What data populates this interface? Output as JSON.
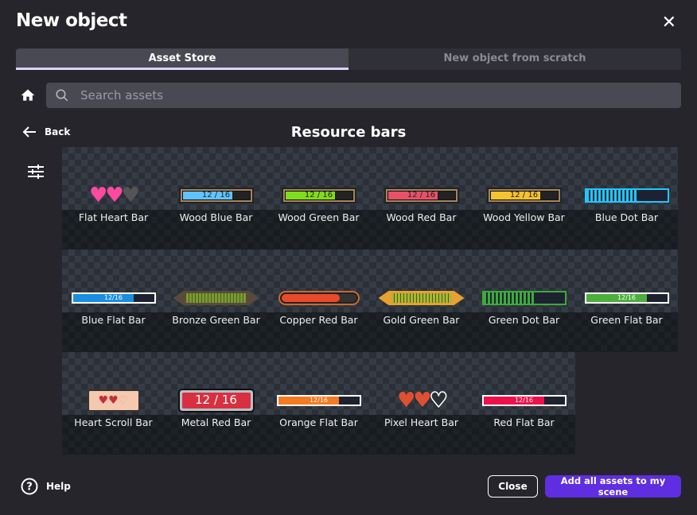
{
  "dialog": {
    "title": "New object"
  },
  "tabs": [
    {
      "label": "Asset Store",
      "active": true
    },
    {
      "label": "New object from scratch",
      "active": false
    }
  ],
  "search": {
    "placeholder": "Search assets",
    "value": ""
  },
  "nav": {
    "back_label": "Back",
    "heading": "Resource bars"
  },
  "assets": [
    {
      "name": "Flat Heart Bar",
      "kind": "hearts",
      "colors": [
        "#ff4aa0",
        "#ff4aa0",
        "#555555"
      ]
    },
    {
      "name": "Wood Blue Bar",
      "kind": "wood",
      "color": "#5ec4ff",
      "text": "12 / 16"
    },
    {
      "name": "Wood Green Bar",
      "kind": "wood",
      "color": "#7fdc1e",
      "text": "12 / 16"
    },
    {
      "name": "Wood Red Bar",
      "kind": "wood",
      "color": "#e8506a",
      "text": "12 / 16"
    },
    {
      "name": "Wood Yellow Bar",
      "kind": "wood",
      "color": "#f5c230",
      "text": "12 / 16"
    },
    {
      "name": "Blue Dot Bar",
      "kind": "dot",
      "color": "#1ec8ff"
    },
    {
      "name": "Blue Flat Bar",
      "kind": "flat",
      "color": "#1a8ee0",
      "text": "12/16"
    },
    {
      "name": "Bronze Green Bar",
      "kind": "ornate",
      "color": "#7a9a30",
      "frame": "#5a4a3a"
    },
    {
      "name": "Copper Red Bar",
      "kind": "capsule",
      "color": "#e84a2a"
    },
    {
      "name": "Gold Green Bar",
      "kind": "ornate",
      "color": "#a8b830",
      "frame": "#e8a030"
    },
    {
      "name": "Green Dot Bar",
      "kind": "dot",
      "color": "#3caa3c"
    },
    {
      "name": "Green Flat Bar",
      "kind": "flat",
      "color": "#4caf3c",
      "text": "12/16"
    },
    {
      "name": "Heart Scroll Bar",
      "kind": "scroll",
      "color": "#f5c8b0"
    },
    {
      "name": "Metal Red Bar",
      "kind": "metal",
      "color": "#d83040",
      "text": "12 / 16"
    },
    {
      "name": "Orange Flat Bar",
      "kind": "flat",
      "color": "#f57a20",
      "text": "12/16"
    },
    {
      "name": "Pixel Heart Bar",
      "kind": "hearts",
      "colors": [
        "#e05030",
        "#e05030",
        "#2b3038"
      ]
    },
    {
      "name": "Red Flat Bar",
      "kind": "flat",
      "color": "#f0104a",
      "text": "12/16"
    }
  ],
  "footer": {
    "help_label": "Help",
    "close_label": "Close",
    "add_label": "Add all assets to my scene"
  }
}
